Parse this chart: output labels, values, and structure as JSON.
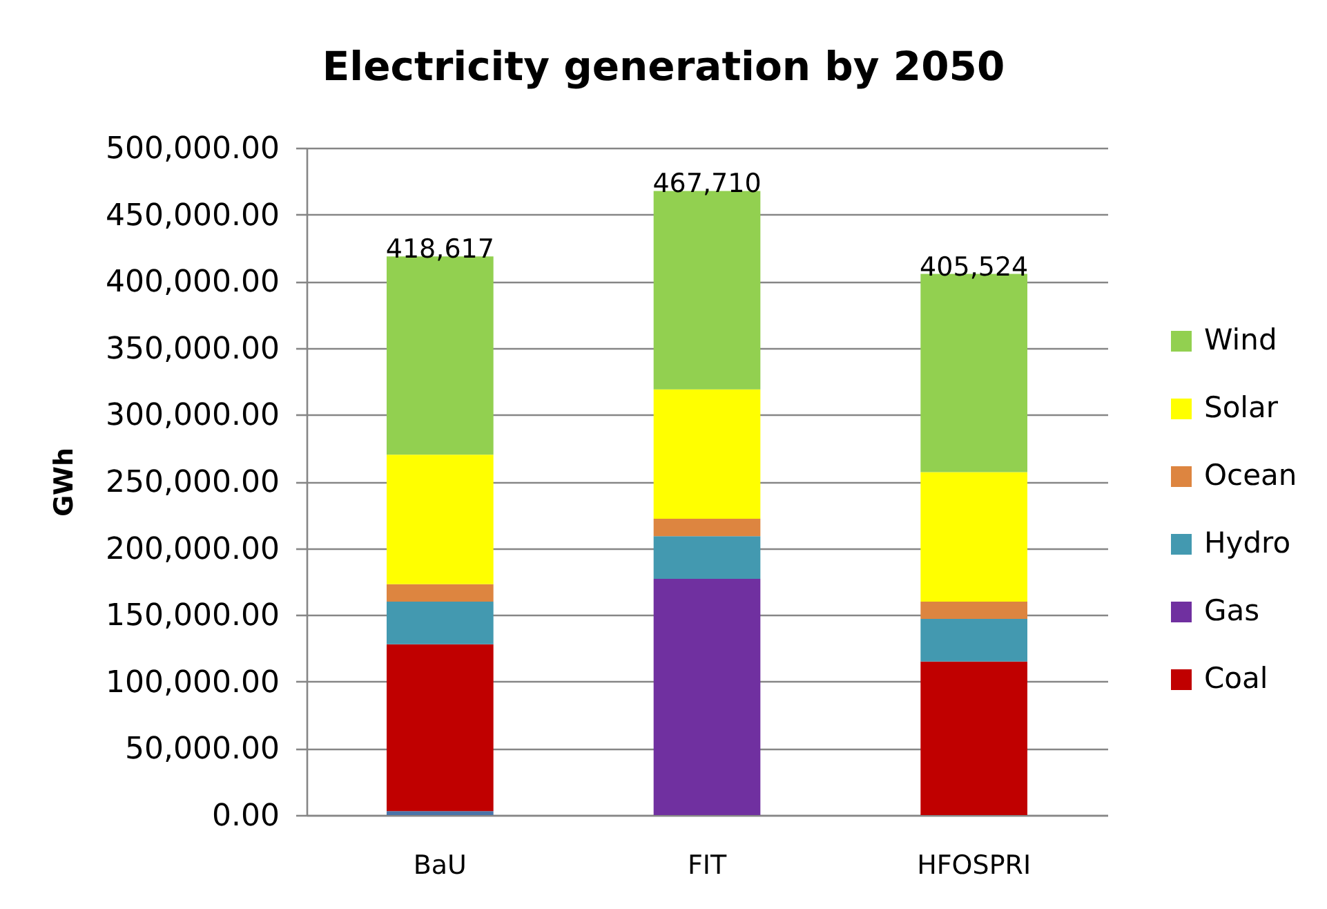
{
  "chart_data": {
    "type": "bar",
    "title": "Electricity generation by 2050",
    "ylabel": "GWh",
    "categories": [
      "BaU",
      "FIT",
      "HFOSPRI"
    ],
    "stacked": true,
    "series": [
      {
        "color": "#4a74a8",
        "values": [
          3000,
          null,
          null
        ]
      },
      {
        "name": "Coal",
        "color": "#c00000",
        "values": [
          125000,
          null,
          115000
        ]
      },
      {
        "name": "Gas",
        "color": "#7030a0",
        "values": [
          null,
          177000,
          null
        ]
      },
      {
        "name": "Hydro",
        "color": "#4399b0",
        "values": [
          32000,
          32000,
          32000
        ]
      },
      {
        "name": "Ocean",
        "color": "#dd8540",
        "values": [
          13000,
          13000,
          13000
        ]
      },
      {
        "name": "Solar",
        "color": "#ffff00",
        "values": [
          97000,
          97000,
          97000
        ]
      },
      {
        "name": "Wind",
        "color": "#92d050",
        "values": [
          148617,
          148710,
          148524
        ]
      }
    ],
    "totals": [
      "418,617",
      "467,710",
      "405,524"
    ],
    "ylim": [
      0,
      500000
    ],
    "yticks": [
      {
        "value": 0,
        "label": "0.00"
      },
      {
        "value": 50000,
        "label": "50,000.00"
      },
      {
        "value": 100000,
        "label": "100,000.00"
      },
      {
        "value": 150000,
        "label": "150,000.00"
      },
      {
        "value": 200000,
        "label": "200,000.00"
      },
      {
        "value": 250000,
        "label": "250,000.00"
      },
      {
        "value": 300000,
        "label": "300,000.00"
      },
      {
        "value": 350000,
        "label": "350,000.00"
      },
      {
        "value": 400000,
        "label": "400,000.00"
      },
      {
        "value": 450000,
        "label": "450,000.00"
      },
      {
        "value": 500000,
        "label": "500,000.00"
      }
    ],
    "grid": "y",
    "legend": "right"
  }
}
